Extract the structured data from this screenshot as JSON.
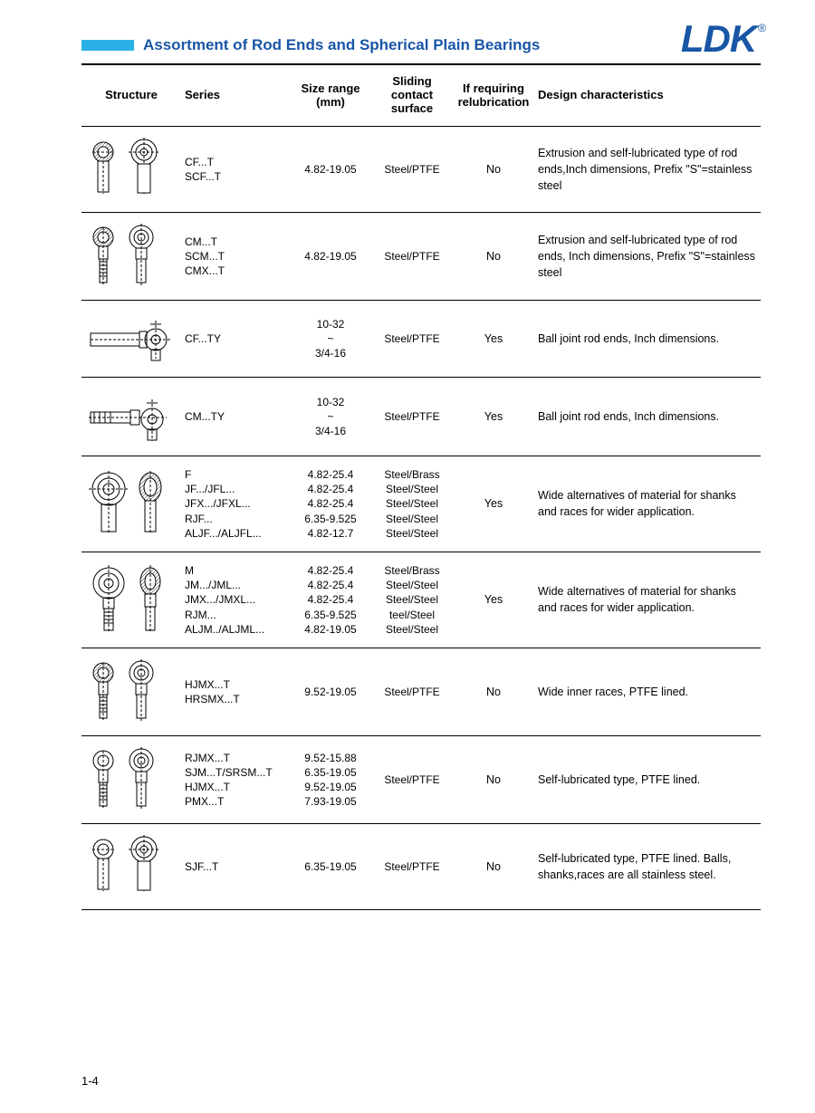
{
  "header": {
    "title": "Assortment of Rod Ends and Spherical Plain Bearings",
    "logo": "LDK",
    "registered": "®",
    "bar_color": "#2bb1e6",
    "title_color": "#1956a6"
  },
  "columns": {
    "structure": "Structure",
    "series": "Series",
    "size": "Size range (mm)",
    "surface": "Sliding contact surface",
    "relub": "If requiring relubrication",
    "design": "Design characteristics"
  },
  "rows": [
    {
      "series": [
        "CF...T",
        "SCF...T"
      ],
      "size": [
        "4.82-19.05"
      ],
      "surface": [
        "Steel/PTFE"
      ],
      "relub": "No",
      "design": "Extrusion and self-lubricated type of rod ends,Inch dimensions, Prefix \"S\"=stainless steel"
    },
    {
      "series": [
        "CM...T",
        "SCM...T",
        "CMX...T"
      ],
      "size": [
        "4.82-19.05"
      ],
      "surface": [
        "Steel/PTFE"
      ],
      "relub": "No",
      "design": "Extrusion and self-lubricated type of rod ends, Inch dimensions, Prefix \"S\"=stainless steel"
    },
    {
      "series": [
        "CF...TY"
      ],
      "size": [
        "10-32",
        "~",
        "3/4-16"
      ],
      "surface": [
        "Steel/PTFE"
      ],
      "relub": "Yes",
      "design": "Ball joint rod ends, Inch dimensions."
    },
    {
      "series": [
        "CM...TY"
      ],
      "size": [
        "10-32",
        "~",
        "3/4-16"
      ],
      "surface": [
        "Steel/PTFE"
      ],
      "relub": "Yes",
      "design": "Ball joint rod ends, Inch dimensions."
    },
    {
      "series": [
        "F",
        "JF.../JFL...",
        "JFX.../JFXL...",
        "RJF...",
        "ALJF.../ALJFL..."
      ],
      "size": [
        "4.82-25.4",
        "4.82-25.4",
        "4.82-25.4",
        "6.35-9.525",
        "4.82-12.7"
      ],
      "surface": [
        "Steel/Brass",
        "Steel/Steel",
        "Steel/Steel",
        "Steel/Steel",
        "Steel/Steel"
      ],
      "relub": "Yes",
      "design": "Wide alternatives of material for shanks and races for wider application."
    },
    {
      "series": [
        "M",
        "JM.../JML...",
        "JMX.../JMXL...",
        "RJM...",
        "ALJM../ALJML..."
      ],
      "size": [
        "4.82-25.4",
        "4.82-25.4",
        "4.82-25.4",
        "6.35-9.525",
        "4.82-19.05"
      ],
      "surface": [
        "Steel/Brass",
        "Steel/Steel",
        "Steel/Steel",
        "teel/Steel",
        "Steel/Steel"
      ],
      "relub": "Yes",
      "design": "Wide alternatives of material for shanks and races for wider application."
    },
    {
      "series": [
        "HJMX...T",
        "HRSMX...T"
      ],
      "size": [
        "9.52-19.05"
      ],
      "surface": [
        "Steel/PTFE"
      ],
      "relub": "No",
      "design": "Wide inner races, PTFE lined."
    },
    {
      "series": [
        "RJMX...T",
        "SJM...T/SRSM...T",
        "HJMX...T",
        "PMX...T"
      ],
      "size": [
        "9.52-15.88",
        "6.35-19.05",
        "9.52-19.05",
        "7.93-19.05"
      ],
      "surface": [
        "Steel/PTFE"
      ],
      "relub": "No",
      "design": "Self-lubricated type, PTFE lined."
    },
    {
      "series": [
        "SJF...T"
      ],
      "size": [
        "6.35-19.05"
      ],
      "surface": [
        "Steel/PTFE"
      ],
      "relub": "No",
      "design": "Self-lubricated type, PTFE lined. Balls, shanks,races are all stainless steel."
    }
  ],
  "page_number": "1-4"
}
